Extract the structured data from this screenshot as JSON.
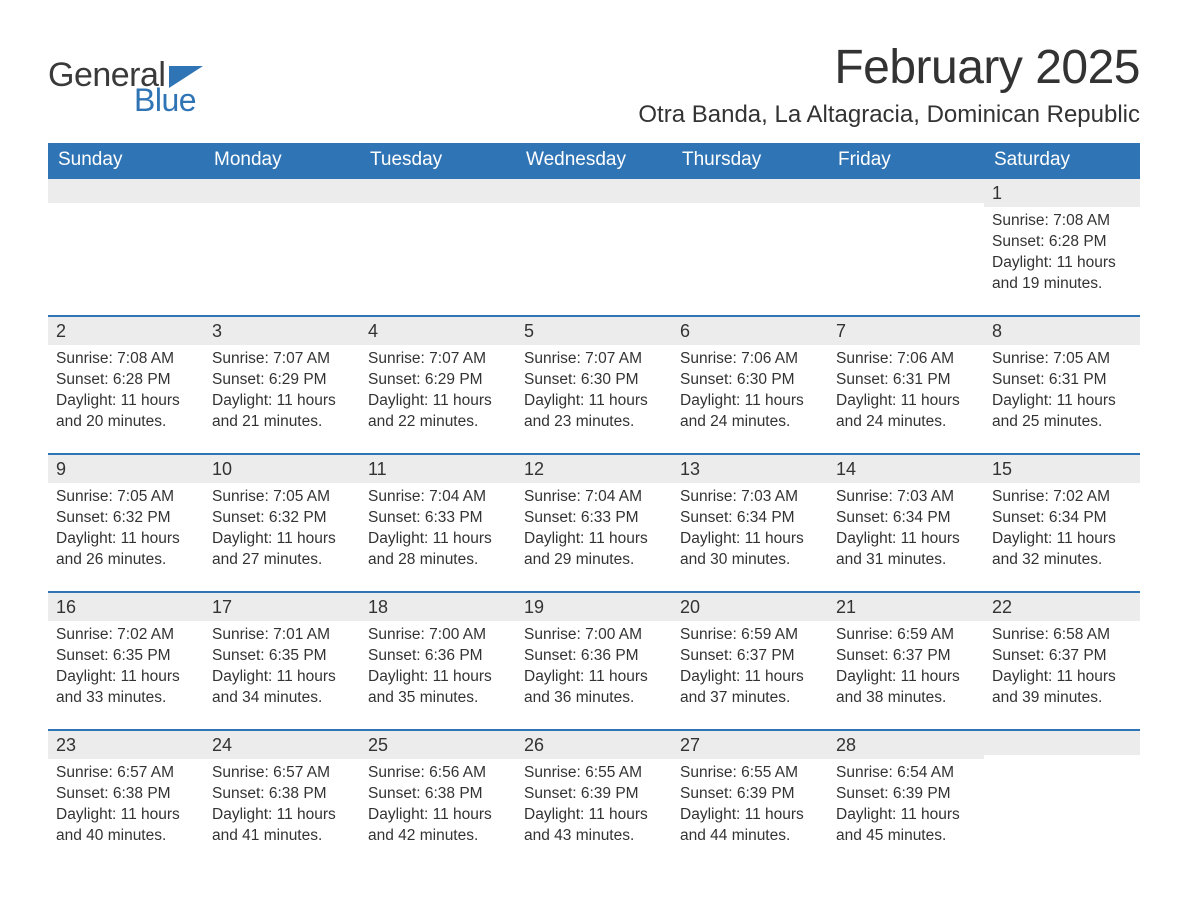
{
  "brand": {
    "word1": "General",
    "word2": "Blue",
    "flag_color": "#2f74b5",
    "word1_color": "#3a3a3a",
    "word2_color": "#2f74b5"
  },
  "header": {
    "title": "February 2025",
    "location": "Otra Banda, La Altagracia, Dominican Republic"
  },
  "colors": {
    "header_bg": "#2f74b5",
    "header_text": "#ffffff",
    "band_bg": "#ececec",
    "week_border": "#2f74b5",
    "body_text": "#333333",
    "page_bg": "#ffffff"
  },
  "weekdays": [
    "Sunday",
    "Monday",
    "Tuesday",
    "Wednesday",
    "Thursday",
    "Friday",
    "Saturday"
  ],
  "weeks": [
    [
      {
        "day": null
      },
      {
        "day": null
      },
      {
        "day": null
      },
      {
        "day": null
      },
      {
        "day": null
      },
      {
        "day": null
      },
      {
        "day": "1",
        "sunrise": "Sunrise: 7:08 AM",
        "sunset": "Sunset: 6:28 PM",
        "daylight": "Daylight: 11 hours and 19 minutes."
      }
    ],
    [
      {
        "day": "2",
        "sunrise": "Sunrise: 7:08 AM",
        "sunset": "Sunset: 6:28 PM",
        "daylight": "Daylight: 11 hours and 20 minutes."
      },
      {
        "day": "3",
        "sunrise": "Sunrise: 7:07 AM",
        "sunset": "Sunset: 6:29 PM",
        "daylight": "Daylight: 11 hours and 21 minutes."
      },
      {
        "day": "4",
        "sunrise": "Sunrise: 7:07 AM",
        "sunset": "Sunset: 6:29 PM",
        "daylight": "Daylight: 11 hours and 22 minutes."
      },
      {
        "day": "5",
        "sunrise": "Sunrise: 7:07 AM",
        "sunset": "Sunset: 6:30 PM",
        "daylight": "Daylight: 11 hours and 23 minutes."
      },
      {
        "day": "6",
        "sunrise": "Sunrise: 7:06 AM",
        "sunset": "Sunset: 6:30 PM",
        "daylight": "Daylight: 11 hours and 24 minutes."
      },
      {
        "day": "7",
        "sunrise": "Sunrise: 7:06 AM",
        "sunset": "Sunset: 6:31 PM",
        "daylight": "Daylight: 11 hours and 24 minutes."
      },
      {
        "day": "8",
        "sunrise": "Sunrise: 7:05 AM",
        "sunset": "Sunset: 6:31 PM",
        "daylight": "Daylight: 11 hours and 25 minutes."
      }
    ],
    [
      {
        "day": "9",
        "sunrise": "Sunrise: 7:05 AM",
        "sunset": "Sunset: 6:32 PM",
        "daylight": "Daylight: 11 hours and 26 minutes."
      },
      {
        "day": "10",
        "sunrise": "Sunrise: 7:05 AM",
        "sunset": "Sunset: 6:32 PM",
        "daylight": "Daylight: 11 hours and 27 minutes."
      },
      {
        "day": "11",
        "sunrise": "Sunrise: 7:04 AM",
        "sunset": "Sunset: 6:33 PM",
        "daylight": "Daylight: 11 hours and 28 minutes."
      },
      {
        "day": "12",
        "sunrise": "Sunrise: 7:04 AM",
        "sunset": "Sunset: 6:33 PM",
        "daylight": "Daylight: 11 hours and 29 minutes."
      },
      {
        "day": "13",
        "sunrise": "Sunrise: 7:03 AM",
        "sunset": "Sunset: 6:34 PM",
        "daylight": "Daylight: 11 hours and 30 minutes."
      },
      {
        "day": "14",
        "sunrise": "Sunrise: 7:03 AM",
        "sunset": "Sunset: 6:34 PM",
        "daylight": "Daylight: 11 hours and 31 minutes."
      },
      {
        "day": "15",
        "sunrise": "Sunrise: 7:02 AM",
        "sunset": "Sunset: 6:34 PM",
        "daylight": "Daylight: 11 hours and 32 minutes."
      }
    ],
    [
      {
        "day": "16",
        "sunrise": "Sunrise: 7:02 AM",
        "sunset": "Sunset: 6:35 PM",
        "daylight": "Daylight: 11 hours and 33 minutes."
      },
      {
        "day": "17",
        "sunrise": "Sunrise: 7:01 AM",
        "sunset": "Sunset: 6:35 PM",
        "daylight": "Daylight: 11 hours and 34 minutes."
      },
      {
        "day": "18",
        "sunrise": "Sunrise: 7:00 AM",
        "sunset": "Sunset: 6:36 PM",
        "daylight": "Daylight: 11 hours and 35 minutes."
      },
      {
        "day": "19",
        "sunrise": "Sunrise: 7:00 AM",
        "sunset": "Sunset: 6:36 PM",
        "daylight": "Daylight: 11 hours and 36 minutes."
      },
      {
        "day": "20",
        "sunrise": "Sunrise: 6:59 AM",
        "sunset": "Sunset: 6:37 PM",
        "daylight": "Daylight: 11 hours and 37 minutes."
      },
      {
        "day": "21",
        "sunrise": "Sunrise: 6:59 AM",
        "sunset": "Sunset: 6:37 PM",
        "daylight": "Daylight: 11 hours and 38 minutes."
      },
      {
        "day": "22",
        "sunrise": "Sunrise: 6:58 AM",
        "sunset": "Sunset: 6:37 PM",
        "daylight": "Daylight: 11 hours and 39 minutes."
      }
    ],
    [
      {
        "day": "23",
        "sunrise": "Sunrise: 6:57 AM",
        "sunset": "Sunset: 6:38 PM",
        "daylight": "Daylight: 11 hours and 40 minutes."
      },
      {
        "day": "24",
        "sunrise": "Sunrise: 6:57 AM",
        "sunset": "Sunset: 6:38 PM",
        "daylight": "Daylight: 11 hours and 41 minutes."
      },
      {
        "day": "25",
        "sunrise": "Sunrise: 6:56 AM",
        "sunset": "Sunset: 6:38 PM",
        "daylight": "Daylight: 11 hours and 42 minutes."
      },
      {
        "day": "26",
        "sunrise": "Sunrise: 6:55 AM",
        "sunset": "Sunset: 6:39 PM",
        "daylight": "Daylight: 11 hours and 43 minutes."
      },
      {
        "day": "27",
        "sunrise": "Sunrise: 6:55 AM",
        "sunset": "Sunset: 6:39 PM",
        "daylight": "Daylight: 11 hours and 44 minutes."
      },
      {
        "day": "28",
        "sunrise": "Sunrise: 6:54 AM",
        "sunset": "Sunset: 6:39 PM",
        "daylight": "Daylight: 11 hours and 45 minutes."
      },
      {
        "day": null
      }
    ]
  ]
}
